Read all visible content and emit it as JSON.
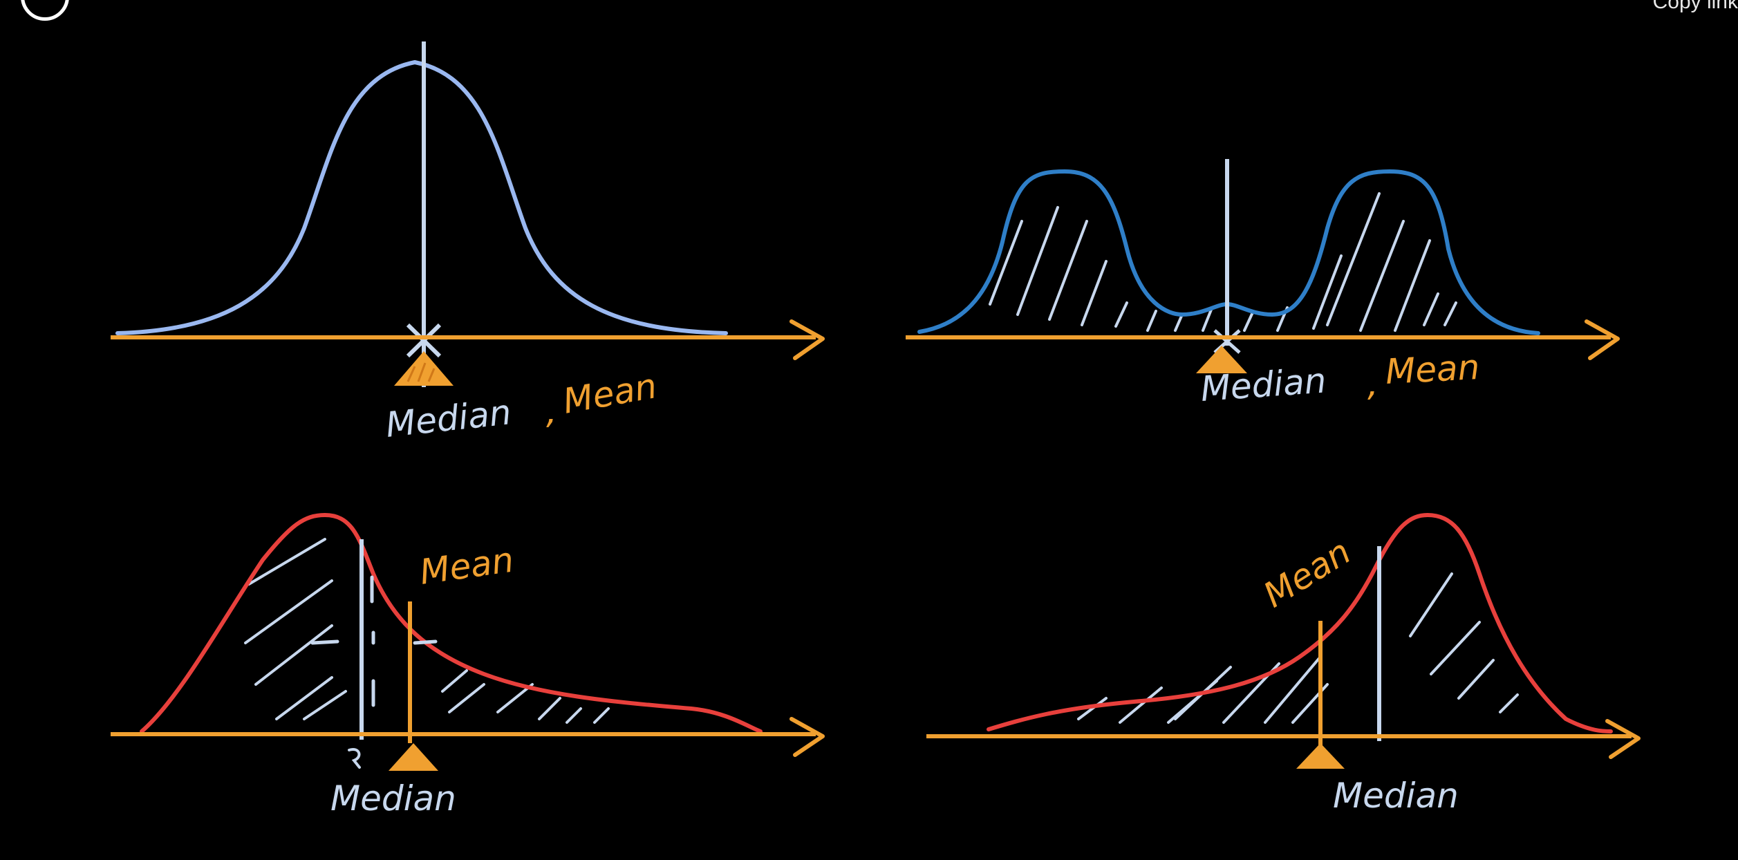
{
  "ui": {
    "copy_link": "Copy link"
  },
  "colors": {
    "background": "#000000",
    "axis": "#f0a030",
    "normal_curve": "#9ab8f0",
    "bimodal_curve": "#2f7fc8",
    "skewed_curve": "#e8403c",
    "median_line": "#c8d8ee",
    "hatch": "#c8d8ee"
  },
  "panels": {
    "normal": {
      "label_median": "Median",
      "label_comma": ",",
      "label_mean": "Mean"
    },
    "bimodal": {
      "label_median": "Median",
      "label_comma": ",",
      "label_mean": "Mean"
    },
    "right_skewed": {
      "label_mean": "Mean",
      "label_median": "Median"
    },
    "left_skewed": {
      "label_mean": "Mean",
      "label_median": "Median"
    }
  }
}
